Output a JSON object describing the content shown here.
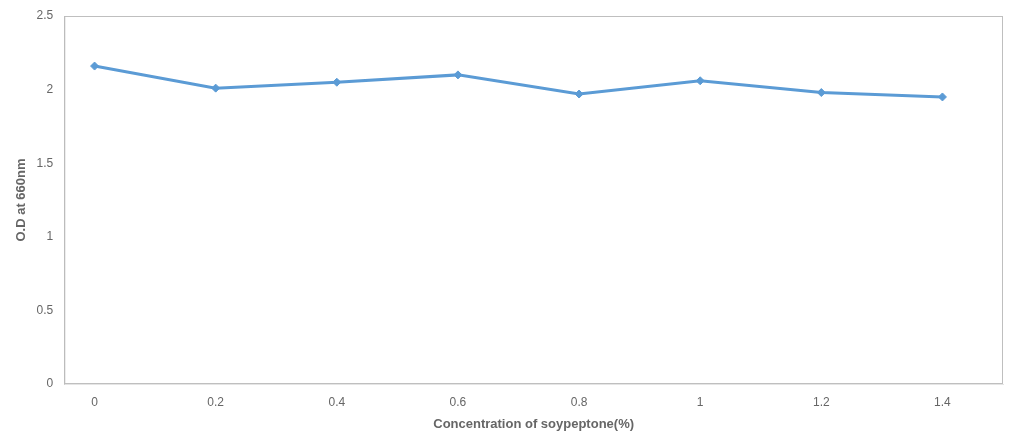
{
  "chart_data": {
    "type": "line",
    "x": [
      0,
      0.2,
      0.4,
      0.6,
      0.8,
      1.0,
      1.2,
      1.4
    ],
    "values": [
      2.16,
      2.01,
      2.05,
      2.1,
      1.97,
      2.06,
      1.98,
      1.95
    ],
    "color": "#5B9BD5",
    "marker": "diamond",
    "xlabel": "Concentration of soypeptone(%)",
    "ylabel": "O.D at 660nm",
    "xlim": [
      -0.05,
      1.5
    ],
    "ylim": [
      0,
      2.5
    ],
    "xticks": [
      0,
      0.2,
      0.4,
      0.6,
      0.8,
      1,
      1.2,
      1.4
    ],
    "yticks": [
      0,
      0.5,
      1,
      1.5,
      2,
      2.5
    ],
    "grid": false
  }
}
